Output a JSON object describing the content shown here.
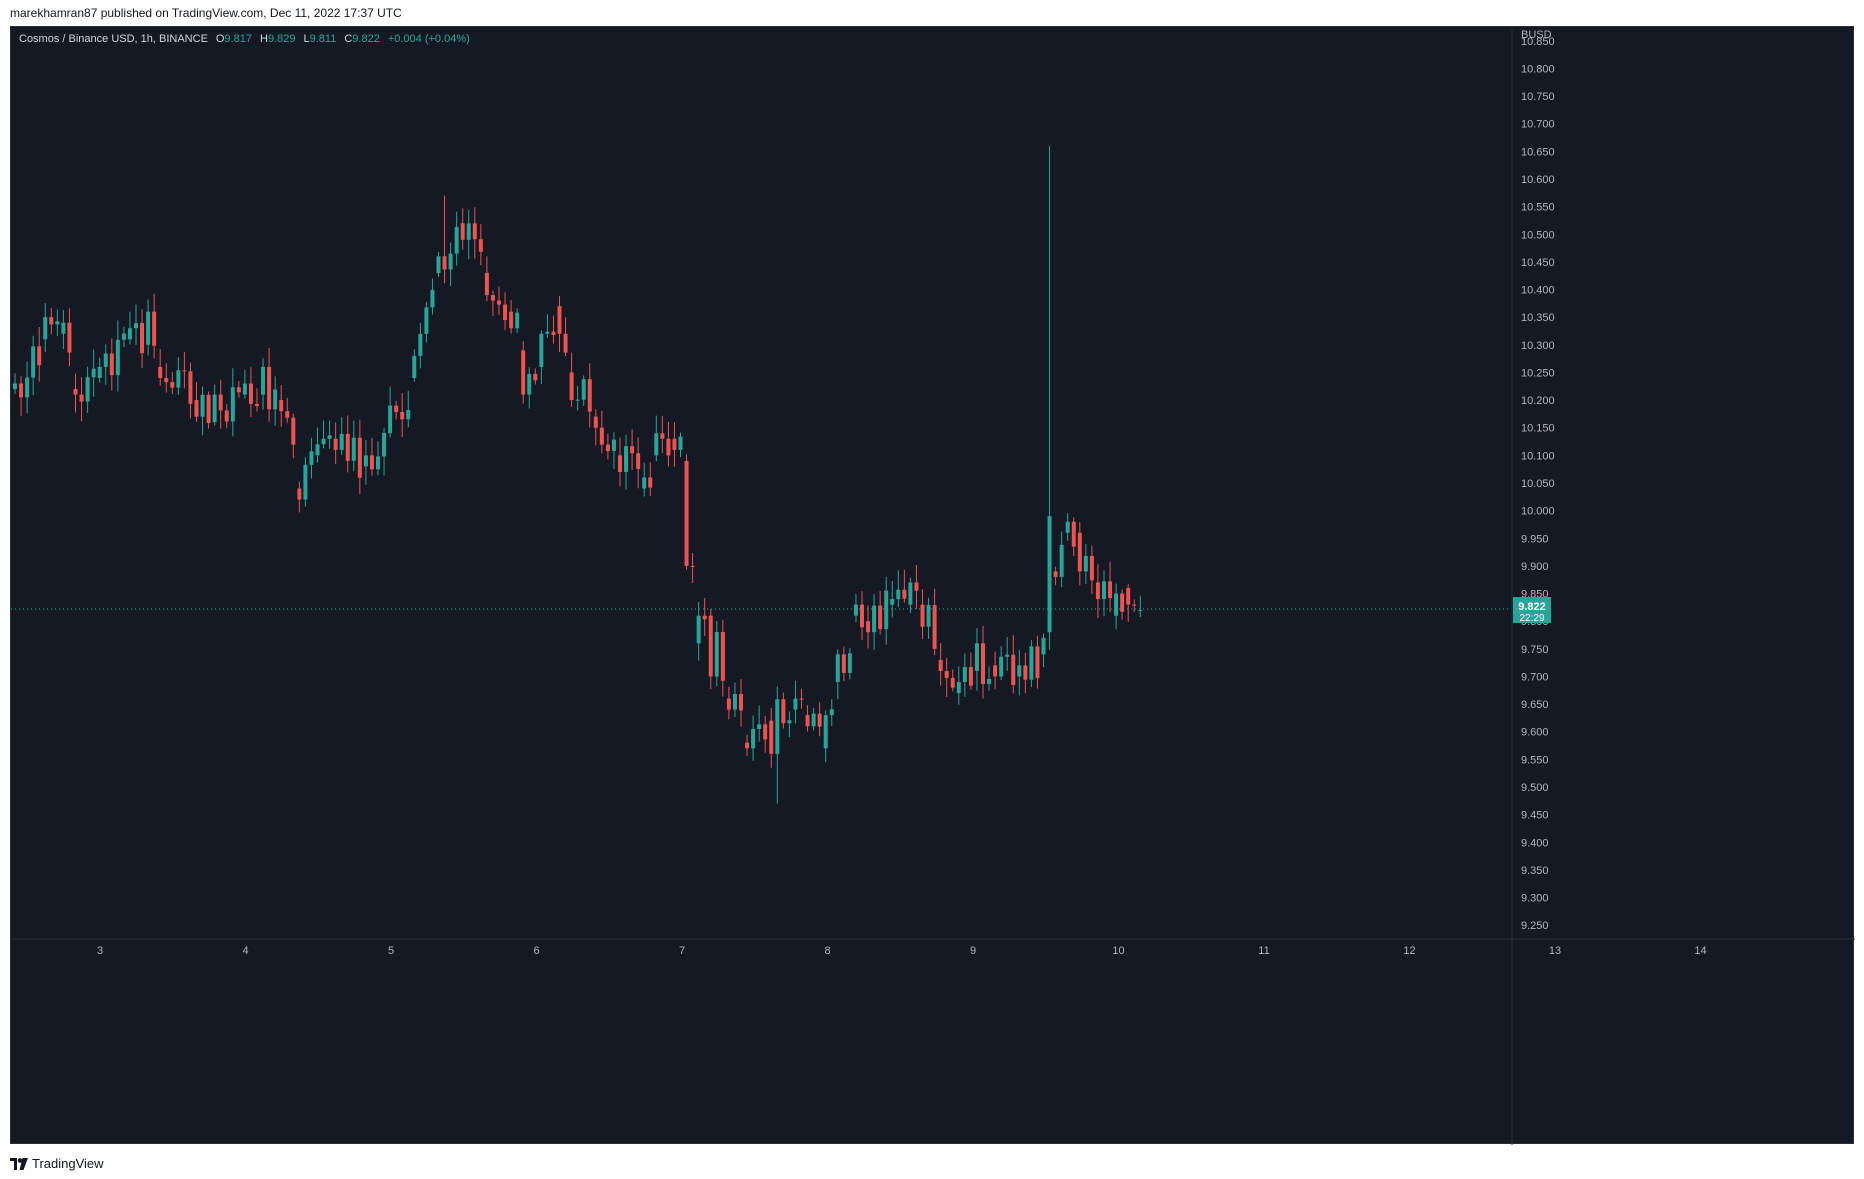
{
  "caption": "marekhamran87 published on TradingView.com, Dec 11, 2022 17:37 UTC",
  "legend": {
    "symbol": "Cosmos / Binance USD, 1h, BINANCE",
    "o_label": "O",
    "o_value": "9.817",
    "h_label": "H",
    "h_value": "9.829",
    "l_label": "L",
    "l_value": "9.811",
    "c_label": "C",
    "c_value": "9.822",
    "change": "+0.004 (+0.04%)"
  },
  "footer": {
    "brand": "TradingView",
    "logo_icon": "tradingview-logo-icon"
  },
  "colors": {
    "up": "#26a69a",
    "down": "#ef5350",
    "background": "#151924",
    "axis_text": "#b2b5be"
  },
  "chart_data": {
    "type": "candlestick",
    "title": "Cosmos / Binance USD, 1h, BINANCE",
    "currency_label": "BUSD",
    "y_ticks": [
      "10.850",
      "10.800",
      "10.750",
      "10.700",
      "10.650",
      "10.600",
      "10.550",
      "10.500",
      "10.450",
      "10.400",
      "10.350",
      "10.300",
      "10.250",
      "10.200",
      "10.150",
      "10.100",
      "10.050",
      "10.000",
      "9.950",
      "9.900",
      "9.850",
      "9.800",
      "9.750",
      "9.700",
      "9.650",
      "9.600",
      "9.550",
      "9.500",
      "9.450",
      "9.400",
      "9.350",
      "9.300",
      "9.250"
    ],
    "ylim": [
      9.225,
      10.875
    ],
    "x_ticks": [
      "3",
      "4",
      "5",
      "6",
      "7",
      "8",
      "9",
      "10",
      "11",
      "12",
      "13",
      "14"
    ],
    "last_price": "9.822",
    "countdown": "22:29",
    "grid": false,
    "anchors": [
      [
        0,
        10.22,
        10.23
      ],
      [
        5,
        10.31,
        10.35
      ],
      [
        8,
        10.32,
        10.34
      ],
      [
        10,
        10.22,
        10.21
      ],
      [
        14,
        10.24,
        10.26
      ],
      [
        19,
        10.31,
        10.33
      ],
      [
        22,
        10.3,
        10.36
      ],
      [
        24,
        10.26,
        10.24
      ],
      [
        30,
        10.2,
        10.17
      ],
      [
        33,
        10.16,
        10.21
      ],
      [
        38,
        10.21,
        10.23
      ],
      [
        41,
        10.21,
        10.26
      ],
      [
        44,
        10.2,
        10.18
      ],
      [
        47,
        10.04,
        10.02
      ],
      [
        50,
        10.1,
        10.12
      ],
      [
        53,
        10.13,
        10.11
      ],
      [
        58,
        10.08,
        10.1
      ],
      [
        62,
        10.14,
        10.19
      ],
      [
        66,
        10.24,
        10.28
      ],
      [
        70,
        10.43,
        10.46
      ],
      [
        74,
        10.52,
        10.49
      ],
      [
        78,
        10.43,
        10.39
      ],
      [
        82,
        10.36,
        10.33
      ],
      [
        84,
        10.29,
        10.21
      ],
      [
        87,
        10.26,
        10.32
      ],
      [
        90,
        10.37,
        10.32
      ],
      [
        92,
        10.25,
        10.2
      ],
      [
        96,
        10.17,
        10.15
      ],
      [
        100,
        10.1,
        10.07
      ],
      [
        104,
        10.04,
        10.06
      ],
      [
        106,
        10.1,
        10.14
      ],
      [
        109,
        10.13,
        10.11
      ],
      [
        111,
        10.09,
        9.9
      ],
      [
        113,
        9.76,
        9.81
      ],
      [
        115,
        9.81,
        9.7
      ],
      [
        118,
        9.66,
        9.64
      ],
      [
        121,
        9.58,
        9.57
      ],
      [
        125,
        9.62,
        9.56
      ],
      [
        129,
        9.64,
        9.66
      ],
      [
        131,
        9.63,
        9.61
      ],
      [
        134,
        9.57,
        9.63
      ],
      [
        136,
        9.69,
        9.74
      ],
      [
        139,
        9.81,
        9.83
      ],
      [
        141,
        9.8,
        9.78
      ],
      [
        145,
        9.83,
        9.84
      ],
      [
        148,
        9.83,
        9.87
      ],
      [
        150,
        9.83,
        9.79
      ],
      [
        153,
        9.73,
        9.71
      ],
      [
        156,
        9.67,
        9.69
      ],
      [
        159,
        9.71,
        9.76
      ],
      [
        162,
        9.72,
        9.7
      ],
      [
        166,
        9.7,
        9.72
      ],
      [
        170,
        9.74,
        9.77
      ],
      [
        171,
        9.78,
        9.99
      ],
      [
        172,
        9.89,
        9.88
      ],
      [
        174,
        9.96,
        9.98
      ],
      [
        176,
        9.96,
        9.89
      ],
      [
        179,
        9.87,
        9.84
      ],
      [
        182,
        9.81,
        9.85
      ],
      [
        184,
        9.86,
        9.83
      ],
      [
        186,
        9.82,
        9.82
      ]
    ],
    "highlights": {
      "spike_index": 171,
      "spike_high": 10.66,
      "min_index": 126,
      "min_low": 9.47,
      "max_index": 71,
      "max_high": 10.57
    }
  }
}
